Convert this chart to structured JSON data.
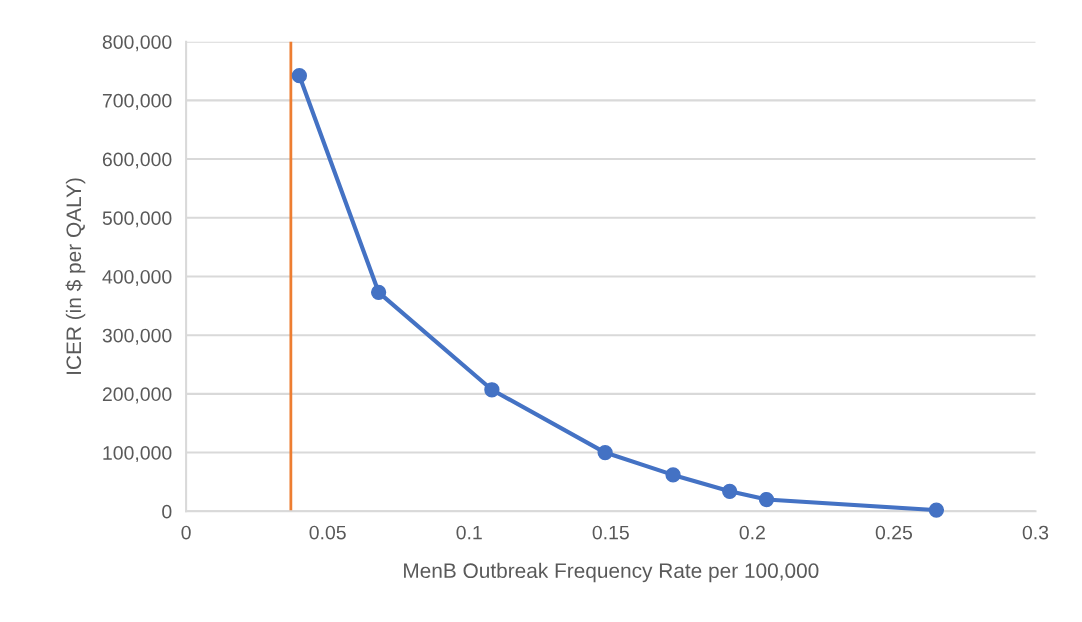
{
  "chart_data": {
    "type": "line",
    "xlabel": "MenB Outbreak Frequency Rate per 100,000",
    "ylabel": "ICER (in $ per QALY)",
    "x": [
      0.04,
      0.068,
      0.108,
      0.148,
      0.172,
      0.192,
      0.205,
      0.265
    ],
    "series": [
      {
        "color": "#4472c4",
        "values": [
          742000,
          373000,
          207000,
          100000,
          62000,
          34000,
          20000,
          2000
        ]
      }
    ],
    "xlim": [
      0,
      0.3
    ],
    "xticks": [
      0,
      0.05,
      0.1,
      0.15,
      0.2,
      0.25,
      0.3
    ],
    "ylim": [
      0,
      800000
    ],
    "yticks": [
      {
        "value": 0,
        "label": "0"
      },
      {
        "value": 100000,
        "label": "100,000"
      },
      {
        "value": 200000,
        "label": "200,000"
      },
      {
        "value": 300000,
        "label": "300,000"
      },
      {
        "value": 400000,
        "label": "400,000"
      },
      {
        "value": 500000,
        "label": "500,000"
      },
      {
        "value": 600000,
        "label": "600,000"
      },
      {
        "value": 700000,
        "label": "700,000"
      },
      {
        "value": 800000,
        "label": "800,000"
      }
    ],
    "ref_lines": [
      {
        "axis": "x",
        "value": 0.037,
        "color": "#ed7d31"
      }
    ],
    "grid": "y",
    "marker": "circle",
    "line_style": "solid",
    "legend": false
  }
}
